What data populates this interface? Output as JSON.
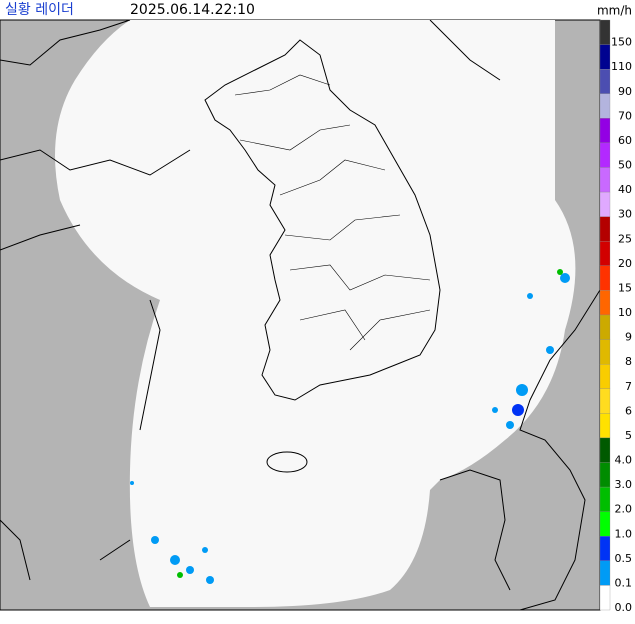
{
  "header": {
    "title": "실황 레이더",
    "timestamp": "2025.06.14.22:10",
    "unit": "mm/h"
  },
  "legend": {
    "items": [
      {
        "label": "150",
        "color": "#333333"
      },
      {
        "label": "110",
        "color": "#000390"
      },
      {
        "label": "90",
        "color": "#4c4eb1"
      },
      {
        "label": "70",
        "color": "#b3b4de"
      },
      {
        "label": "60",
        "color": "#9300e4"
      },
      {
        "label": "50",
        "color": "#b329ff"
      },
      {
        "label": "40",
        "color": "#c969ff"
      },
      {
        "label": "30",
        "color": "#e0a9ff"
      },
      {
        "label": "25",
        "color": "#b40000"
      },
      {
        "label": "20",
        "color": "#d20000"
      },
      {
        "label": "15",
        "color": "#ff3200"
      },
      {
        "label": "10",
        "color": "#ff6600"
      },
      {
        "label": "9",
        "color": "#ccaa00"
      },
      {
        "label": "8",
        "color": "#e0b900"
      },
      {
        "label": "7",
        "color": "#f9cd00"
      },
      {
        "label": "6",
        "color": "#ffdc1f"
      },
      {
        "label": "5",
        "color": "#ffe100"
      },
      {
        "label": "4.0",
        "color": "#005a00"
      },
      {
        "label": "3.0",
        "color": "#008c00"
      },
      {
        "label": "2.0",
        "color": "#00be00"
      },
      {
        "label": "1.0",
        "color": "#00ff00"
      },
      {
        "label": "0.5",
        "color": "#0033f5"
      },
      {
        "label": "0.1",
        "color": "#009bf5"
      },
      {
        "label": "0.0",
        "color": "#ffffff"
      }
    ]
  }
}
